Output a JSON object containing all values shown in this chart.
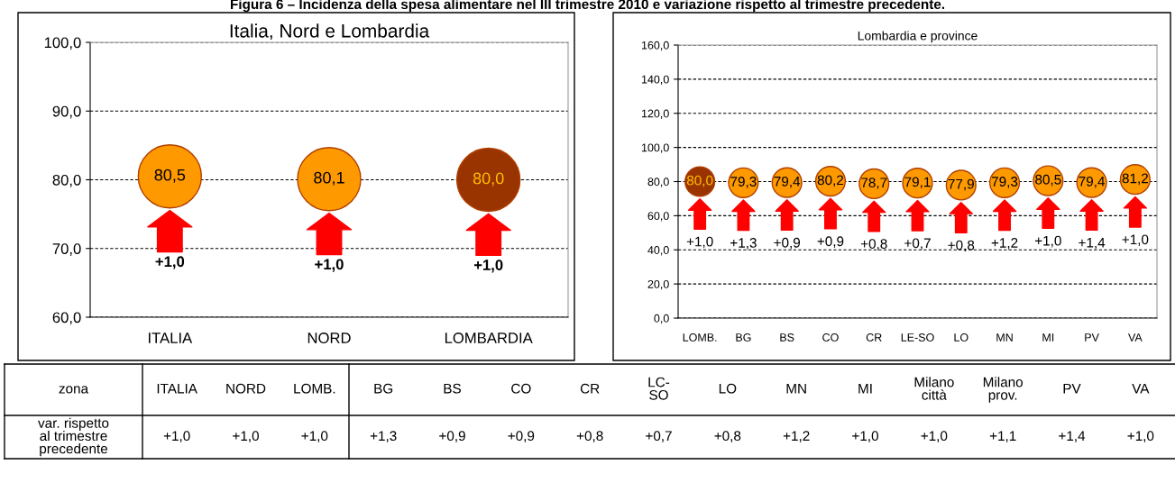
{
  "chart_data": [
    {
      "type": "scatter",
      "title": "Italia, Nord e Lombardia",
      "categories": [
        "ITALIA",
        "NORD",
        "LOMBARDIA"
      ],
      "values": [
        80.5,
        80.1,
        80.0
      ],
      "colors": [
        "#ff9900",
        "#ff9900",
        "#993300"
      ],
      "value_labels": [
        "80,5",
        "80,1",
        "80,0"
      ],
      "ylim": [
        60,
        100
      ],
      "yticks": [
        {
          "value": 60,
          "label": "60,0"
        },
        {
          "value": 70,
          "label": "70,0"
        },
        {
          "value": 80,
          "label": "80,0"
        },
        {
          "value": 90,
          "label": "90,0"
        },
        {
          "value": 100,
          "label": "100,0"
        }
      ],
      "grid": "y",
      "marker": "circle",
      "annotations": [
        "+1,0",
        "+1,0",
        "+1,0",
        "Figura 6 – Incidenza della spesa alimentare nel III trimestre 2010 e variazione rispetto al trimestre precedente."
      ]
    },
    {
      "type": "scatter",
      "title": "Lombardia e province",
      "categories": [
        "LOMB.",
        "BG",
        "BS",
        "CO",
        "CR",
        "LE-SO",
        "LO",
        "MN",
        "MI",
        "PV",
        "VA"
      ],
      "values": [
        80.0,
        79.3,
        79.4,
        80.2,
        78.7,
        79.1,
        77.9,
        79.3,
        80.5,
        79.4,
        81.2
      ],
      "colors": [
        "#993300",
        "#ff9900",
        "#ff9900",
        "#ff9900",
        "#ff9900",
        "#ff9900",
        "#ff9900",
        "#ff9900",
        "#ff9900",
        "#ff9900",
        "#ff9900"
      ],
      "value_labels": [
        "80,0",
        "79,3",
        "79,4",
        "80,2",
        "78,7",
        "79,1",
        "77,9",
        "79,3",
        "80,5",
        "79,4",
        "81,2"
      ],
      "ylim": [
        0,
        160
      ],
      "yticks": [
        {
          "value": 0,
          "label": "0,0"
        },
        {
          "value": 20,
          "label": "20,0"
        },
        {
          "value": 40,
          "label": "40,0"
        },
        {
          "value": 60,
          "label": "60,0"
        },
        {
          "value": 80,
          "label": "80,0"
        },
        {
          "value": 100,
          "label": "100,0"
        },
        {
          "value": 120,
          "label": "120,0"
        },
        {
          "value": 140,
          "label": "140,0"
        },
        {
          "value": 160,
          "label": "160,0"
        }
      ],
      "grid": "y",
      "marker": "circle",
      "annotations": [
        "+1,0",
        "+1,3",
        "+0,9",
        "+0,9",
        "+0,8",
        "+0,7",
        "+0,8",
        "+1,2",
        "+1,0",
        "+1,4",
        "+1,0"
      ]
    },
    {
      "type": "other",
      "xlabel": "zona",
      "categories": [
        "ITALIA",
        "NORD",
        "LOMB.",
        "BG",
        "BS",
        "CO",
        "CR",
        "LC-\nSO",
        "LO",
        "MN",
        "MI",
        "Milano\ncittà",
        "Milano\nprov.",
        "PV",
        "VA"
      ],
      "y_categories": [
        "var. rispetto\nal trimestre\nprecedente"
      ],
      "cell_labels": [
        [
          "+1,0",
          "+1,0",
          "+1,0",
          "+1,3",
          "+0,9",
          "+0,9",
          "+0,8",
          "+0,7",
          "+0,8",
          "+1,2",
          "+1,0",
          "+1,0",
          "+1,1",
          "+1,4",
          "+1,0"
        ]
      ]
    }
  ]
}
